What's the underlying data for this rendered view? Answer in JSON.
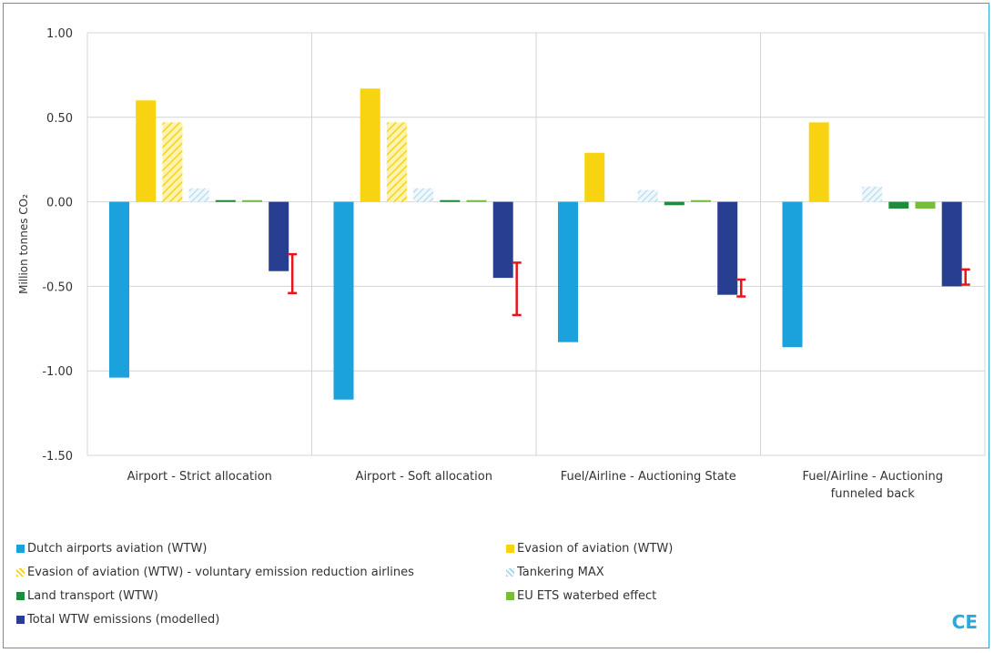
{
  "chart_data": {
    "type": "bar",
    "ylabel": "Million tonnes CO₂",
    "ylim": [
      -1.5,
      1.0
    ],
    "yticks": [
      1.0,
      0.5,
      0.0,
      -0.5,
      -1.0,
      -1.5
    ],
    "ytick_labels": [
      "1.00",
      "0.50",
      "0.00",
      "-0.50",
      "-1.00",
      "-1.50"
    ],
    "grid": true,
    "legend_position": "bottom",
    "categories": [
      [
        "Airport - Strict allocation"
      ],
      [
        "Airport - Soft allocation"
      ],
      [
        "Fuel/Airline - Auctioning State"
      ],
      [
        "Fuel/Airline - Auctioning",
        "funneled back"
      ]
    ],
    "series": [
      {
        "name": "Dutch airports aviation (WTW)",
        "color": "#1ba1dc",
        "pattern": "solid",
        "values": [
          -1.04,
          -1.17,
          -0.83,
          -0.86
        ]
      },
      {
        "name": "Evasion of aviation (WTW)",
        "color": "#f7d312",
        "pattern": "solid",
        "values": [
          0.6,
          0.67,
          0.29,
          0.47
        ]
      },
      {
        "name": "Evasion of aviation (WTW) - voluntary emission reduction airlines",
        "color": "#f7d312",
        "pattern": "hatch",
        "values": [
          0.47,
          0.47,
          0.0,
          0.0
        ]
      },
      {
        "name": "Tankering MAX",
        "color": "#aad6ee",
        "pattern": "hatch",
        "values": [
          0.08,
          0.08,
          0.07,
          0.09
        ]
      },
      {
        "name": "Land transport (WTW)",
        "color": "#1e8c3c",
        "pattern": "solid",
        "values": [
          0.01,
          0.01,
          -0.02,
          -0.04
        ]
      },
      {
        "name": "EU ETS waterbed effect",
        "color": "#76bd3e",
        "pattern": "solid",
        "values": [
          0.01,
          0.01,
          0.01,
          -0.04
        ]
      },
      {
        "name": "Total WTW emissions (modelled)",
        "color": "#283f91",
        "pattern": "solid",
        "values": [
          -0.41,
          -0.45,
          -0.55,
          -0.5
        ]
      }
    ],
    "error_bars": {
      "series": "Total WTW emissions (modelled)",
      "color": "#e8141a",
      "ranges": [
        [
          -0.54,
          -0.31
        ],
        [
          -0.67,
          -0.36
        ],
        [
          -0.56,
          -0.46
        ],
        [
          -0.49,
          -0.4
        ]
      ]
    }
  },
  "legend": [
    {
      "label": "Dutch airports aviation (WTW)",
      "color": "#1ba1dc",
      "pattern": "solid"
    },
    {
      "label": "Evasion of aviation (WTW)",
      "color": "#f7d312",
      "pattern": "solid"
    },
    {
      "label": "Evasion of aviation (WTW) - voluntary emission reduction airlines",
      "color": "#f7d312",
      "pattern": "hatch"
    },
    {
      "label": "Tankering MAX",
      "color": "#aad6ee",
      "pattern": "hatch"
    },
    {
      "label": "Land transport (WTW)",
      "color": "#1e8c3c",
      "pattern": "solid"
    },
    {
      "label": "EU ETS waterbed effect",
      "color": "#76bd3e",
      "pattern": "solid"
    },
    {
      "label": "Total WTW emissions (modelled)",
      "color": "#283f91",
      "pattern": "solid"
    }
  ],
  "logo_text": "CE"
}
